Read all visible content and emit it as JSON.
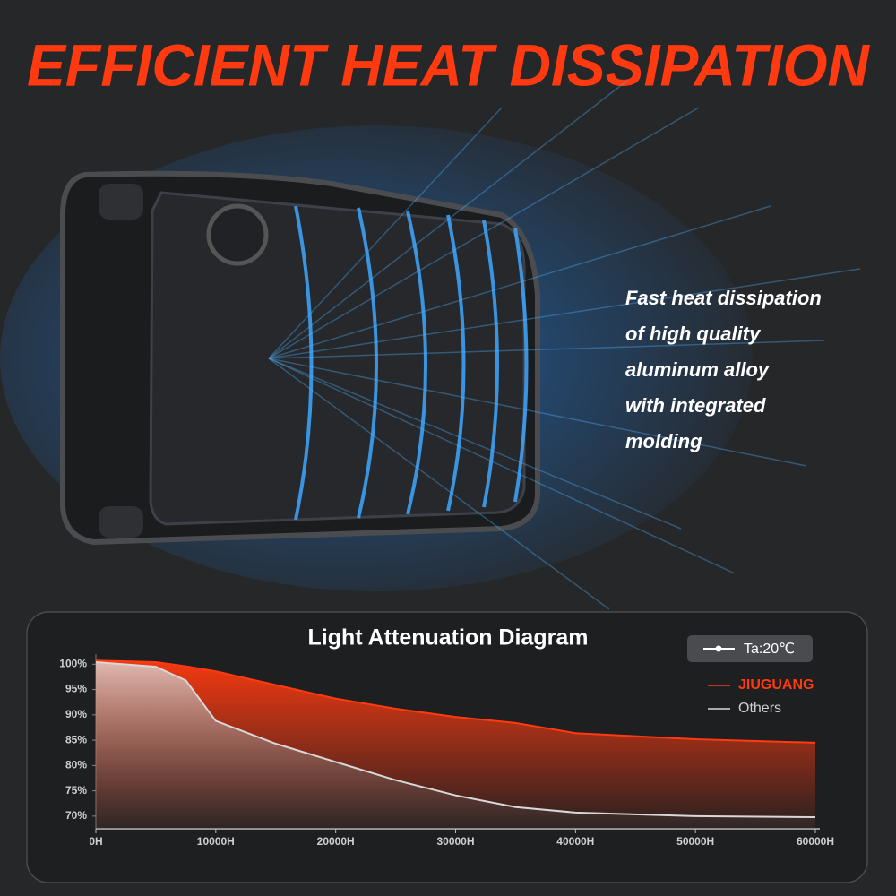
{
  "header": {
    "title": "EFFICIENT HEAT DISSIPATION"
  },
  "description": [
    "Fast heat dissipation",
    "of high quality",
    "aluminum alloy",
    "with integrated",
    "molding"
  ],
  "chart_data": {
    "type": "line",
    "title": "Light Attenuation Diagram",
    "annotation": "Ta:20℃",
    "x": [
      0,
      5000,
      7500,
      10000,
      15000,
      20000,
      25000,
      30000,
      35000,
      40000,
      50000,
      60000
    ],
    "series": [
      {
        "name": "JIUGUANG",
        "color": "#ff3a10",
        "values": [
          100.7,
          100.4,
          99.6,
          98.6,
          95.9,
          93.2,
          91.2,
          89.6,
          88.4,
          86.4,
          85.2,
          84.5
        ]
      },
      {
        "name": "Others",
        "color": "#d8d8d8",
        "values": [
          100.4,
          99.5,
          96.8,
          88.8,
          84.3,
          80.7,
          77.1,
          74.1,
          71.8,
          70.7,
          70,
          69.8
        ]
      }
    ],
    "xlim": [
      0,
      60000
    ],
    "xticks": [
      {
        "value": 0,
        "label": "0H"
      },
      {
        "value": 10000,
        "label": "10000H"
      },
      {
        "value": 20000,
        "label": "20000H"
      },
      {
        "value": 30000,
        "label": "30000H"
      },
      {
        "value": 40000,
        "label": "40000H"
      },
      {
        "value": 50000,
        "label": "50000H"
      },
      {
        "value": 60000,
        "label": "60000H"
      }
    ],
    "ylim": [
      67.5,
      102
    ],
    "yticks": [
      {
        "value": 100,
        "label": "100%"
      },
      {
        "value": 95,
        "label": "95%"
      },
      {
        "value": 90,
        "label": "90%"
      },
      {
        "value": 85,
        "label": "85%"
      },
      {
        "value": 80,
        "label": "80%"
      },
      {
        "value": 75,
        "label": "75%"
      },
      {
        "value": 70,
        "label": "70%"
      }
    ]
  }
}
